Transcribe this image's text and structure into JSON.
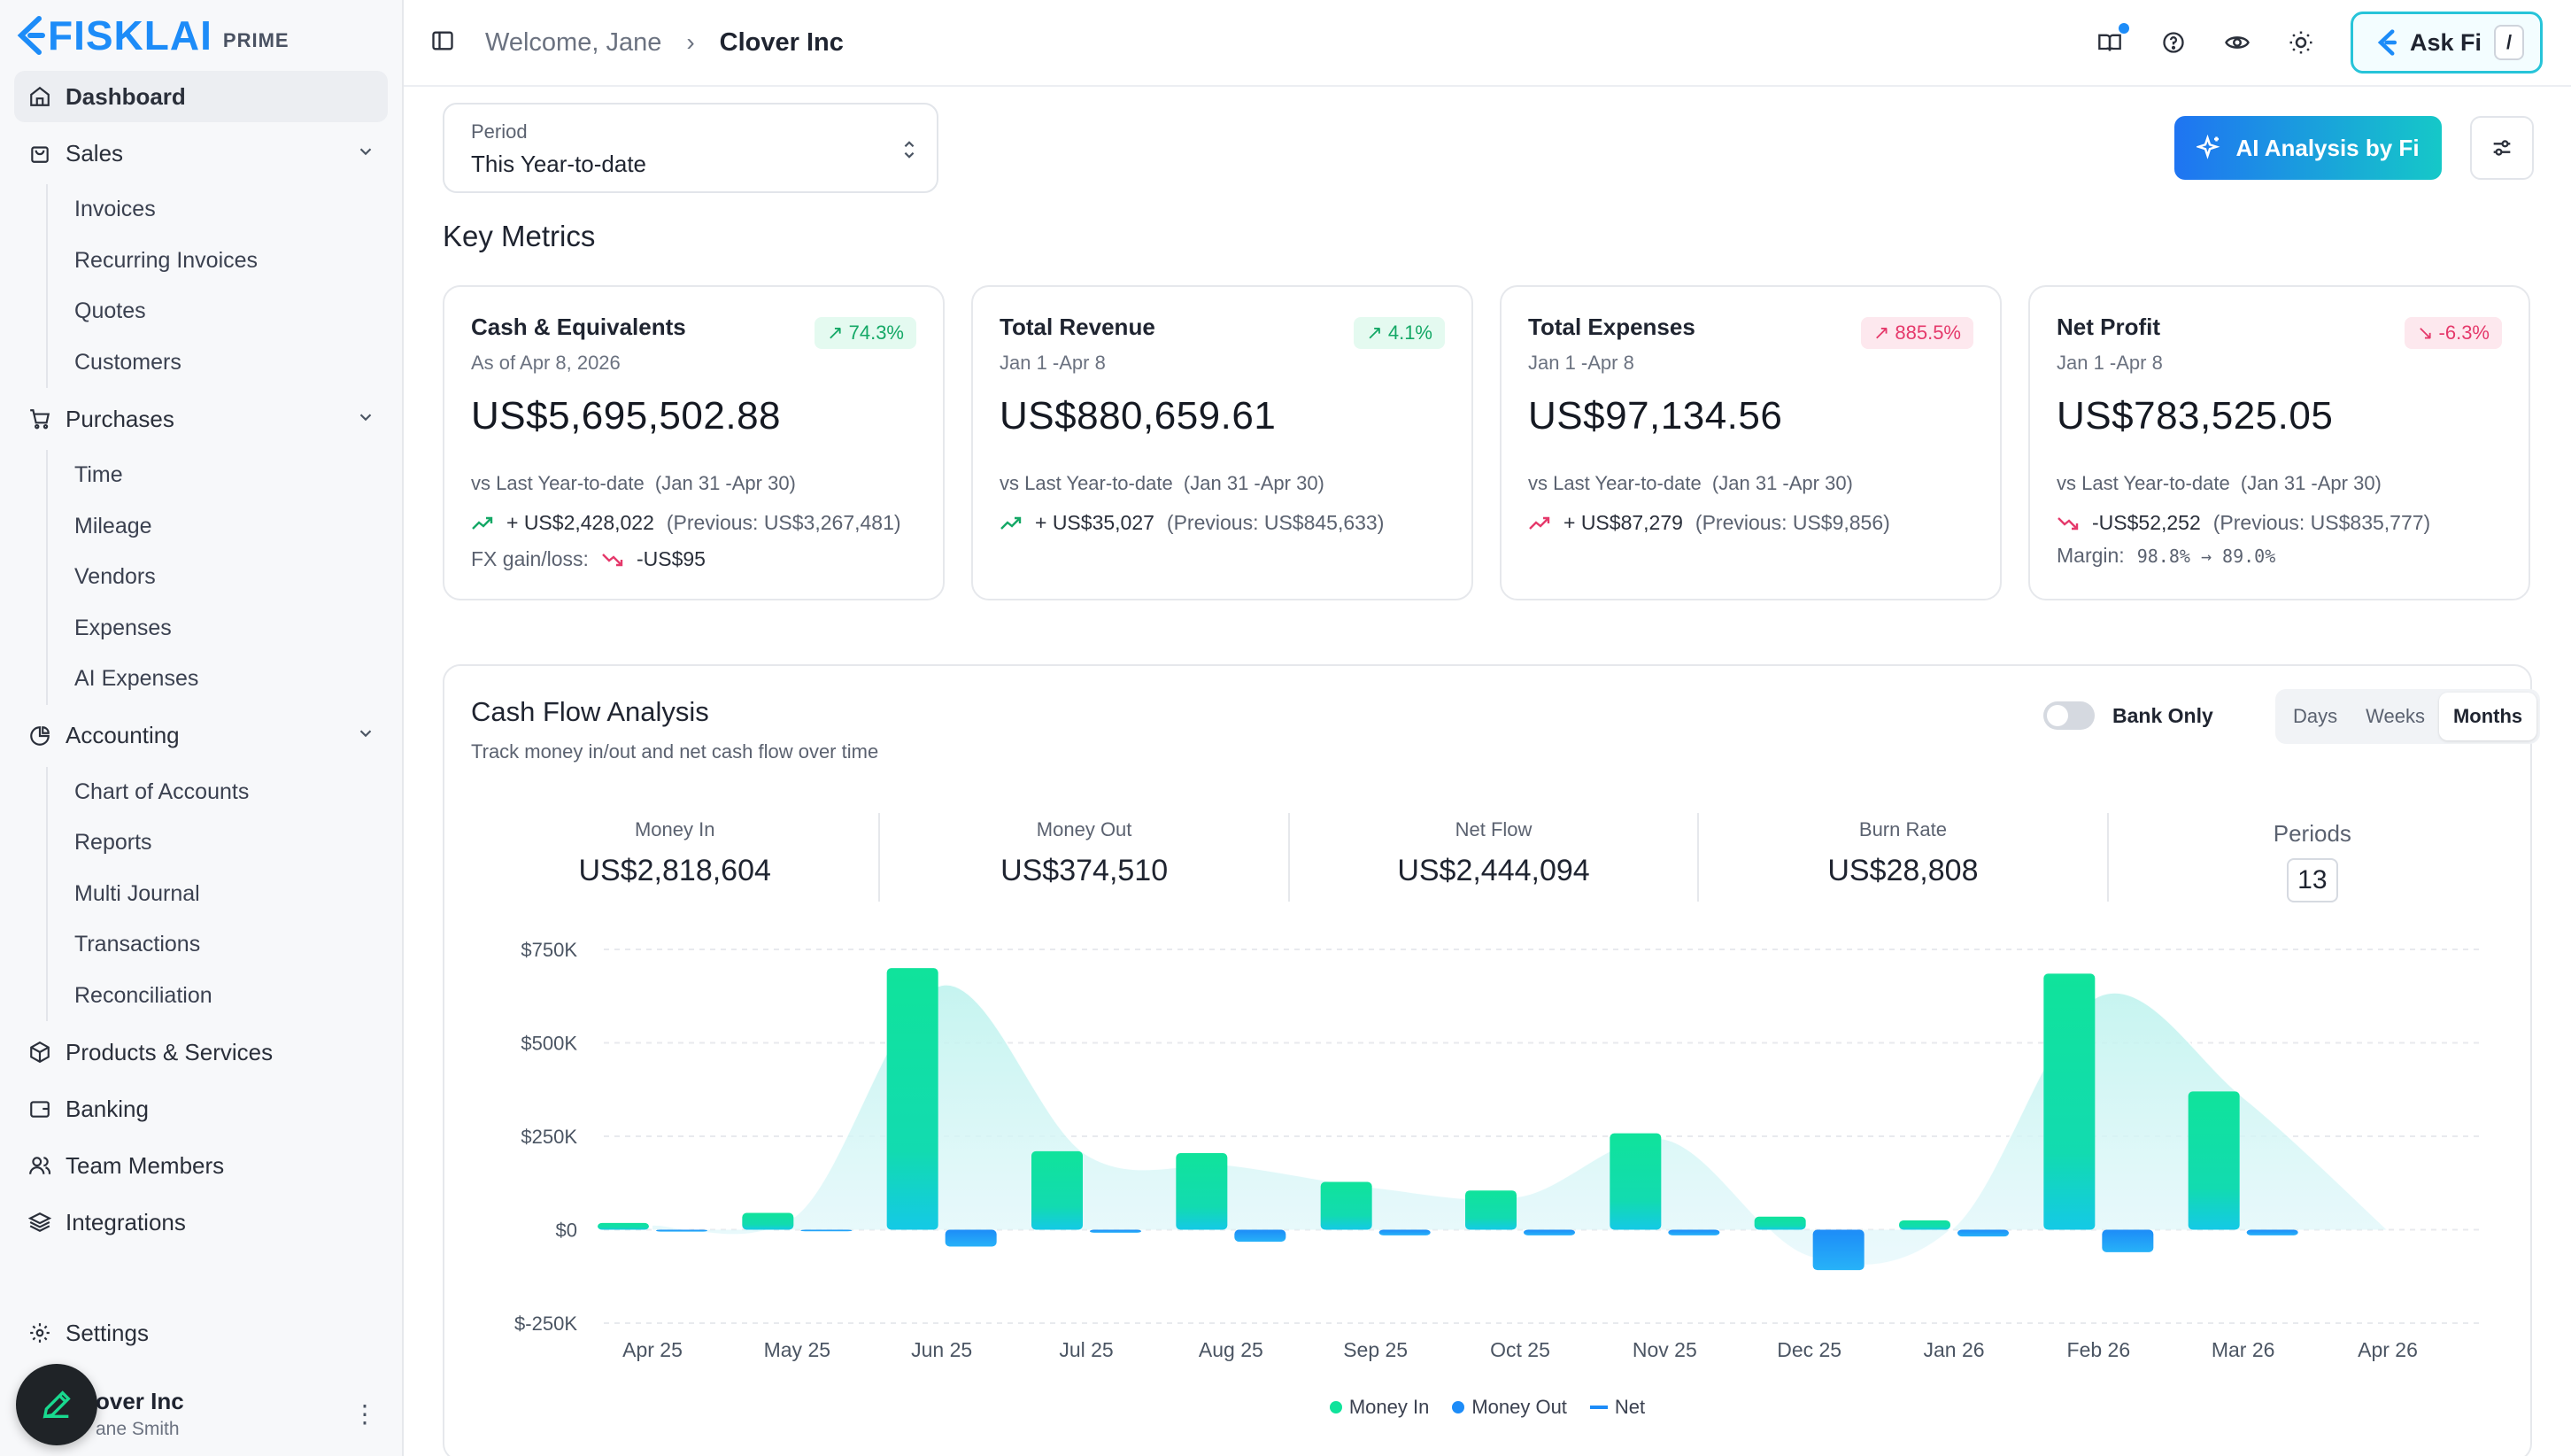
{
  "brand": {
    "name": "FISKLAI",
    "tier": "PRIME"
  },
  "sidebar": {
    "dashboard": "Dashboard",
    "sales": {
      "label": "Sales",
      "items": [
        "Invoices",
        "Recurring Invoices",
        "Quotes",
        "Customers"
      ]
    },
    "purchases": {
      "label": "Purchases",
      "items": [
        "Time",
        "Mileage",
        "Vendors",
        "Expenses",
        "AI Expenses"
      ]
    },
    "accounting": {
      "label": "Accounting",
      "items": [
        "Chart of Accounts",
        "Reports",
        "Multi Journal",
        "Transactions",
        "Reconciliation"
      ]
    },
    "products": "Products & Services",
    "banking": "Banking",
    "team": "Team Members",
    "integrations": "Integrations",
    "settings": "Settings",
    "account": {
      "company": "Clover Inc",
      "user": "Jane Smith",
      "company_visible": "over Inc",
      "user_visible": "ane Smith"
    }
  },
  "header": {
    "welcome": "Welcome, Jane",
    "company": "Clover Inc",
    "ask_label": "Ask Fi",
    "ask_shortcut": "/"
  },
  "period": {
    "label": "Period",
    "value": "This Year-to-date"
  },
  "ai_button": "AI Analysis by Fi",
  "metrics_title": "Key Metrics",
  "metrics": [
    {
      "title": "Cash & Equivalents",
      "sub": "As of Apr 8, 2026",
      "value": "US$5,695,502.88",
      "badge": "74.3%",
      "cmp_label": "vs Last Year-to-date",
      "cmp_range": "(Jan 31 -Apr 30)",
      "delta": "+ US$2,428,022",
      "prev": "(Previous: US$3,267,481)",
      "extra_label": "FX gain/loss:",
      "extra_value": "-US$95"
    },
    {
      "title": "Total Revenue",
      "sub": "Jan 1 -Apr 8",
      "value": "US$880,659.61",
      "badge": "4.1%",
      "cmp_label": "vs Last Year-to-date",
      "cmp_range": "(Jan 31 -Apr 30)",
      "delta": "+ US$35,027",
      "prev": "(Previous: US$845,633)"
    },
    {
      "title": "Total Expenses",
      "sub": "Jan 1 -Apr 8",
      "value": "US$97,134.56",
      "badge": "885.5%",
      "cmp_label": "vs Last Year-to-date",
      "cmp_range": "(Jan 31 -Apr 30)",
      "delta": "+ US$87,279",
      "prev": "(Previous: US$9,856)"
    },
    {
      "title": "Net Profit",
      "sub": "Jan 1 -Apr 8",
      "value": "US$783,525.05",
      "badge": "-6.3%",
      "cmp_label": "vs Last Year-to-date",
      "cmp_range": "(Jan 31 -Apr 30)",
      "delta": "-US$52,252",
      "prev": "(Previous: US$835,777)",
      "extra_label": "Margin:",
      "extra_value": "98.8% → 89.0%"
    }
  ],
  "cashflow": {
    "title": "Cash Flow Analysis",
    "subtitle": "Track money in/out and net cash flow over time",
    "bank_only": "Bank Only",
    "ranges": [
      "Days",
      "Weeks",
      "Months"
    ],
    "active_range": "Months",
    "stats": [
      {
        "label": "Money In",
        "value": "US$2,818,604"
      },
      {
        "label": "Money Out",
        "value": "US$374,510"
      },
      {
        "label": "Net Flow",
        "value": "US$2,444,094"
      },
      {
        "label": "Burn Rate",
        "value": "US$28,808"
      }
    ],
    "periods_label": "Periods",
    "periods_value": "13"
  },
  "chart_data": {
    "type": "bar",
    "categories": [
      "Apr 25",
      "May 25",
      "Jun 25",
      "Jul 25",
      "Aug 25",
      "Sep 25",
      "Oct 25",
      "Nov 25",
      "Dec 25",
      "Jan 26",
      "Feb 26",
      "Mar 26",
      "Apr 26"
    ],
    "series": [
      {
        "name": "Money In",
        "values": [
          18000,
          45000,
          700000,
          210000,
          205000,
          128000,
          105000,
          258000,
          35000,
          25000,
          685000,
          370000,
          0
        ]
      },
      {
        "name": "Money Out",
        "values": [
          -5000,
          -4000,
          -45000,
          -8000,
          -32000,
          -15000,
          -15000,
          -15000,
          -108000,
          -18000,
          -60000,
          -15000,
          0
        ]
      },
      {
        "name": "Net",
        "values": [
          13000,
          41000,
          655000,
          202000,
          173000,
          113000,
          90000,
          243000,
          -73000,
          7000,
          625000,
          355000,
          0
        ]
      }
    ],
    "ylim": [
      -250000,
      750000
    ],
    "yticks": [
      "$-250K",
      "$0",
      "$250K",
      "$500K",
      "$750K"
    ],
    "ytick_values": [
      -250000,
      0,
      250000,
      500000,
      750000
    ],
    "legend": [
      "Money In",
      "Money Out",
      "Net"
    ],
    "colors": {
      "money_in": "#10e39b",
      "money_in_bottom": "#14c9e6",
      "money_out": "#1d8cf8",
      "net": "#1d8cf8",
      "area": "#c9f5f2"
    }
  }
}
